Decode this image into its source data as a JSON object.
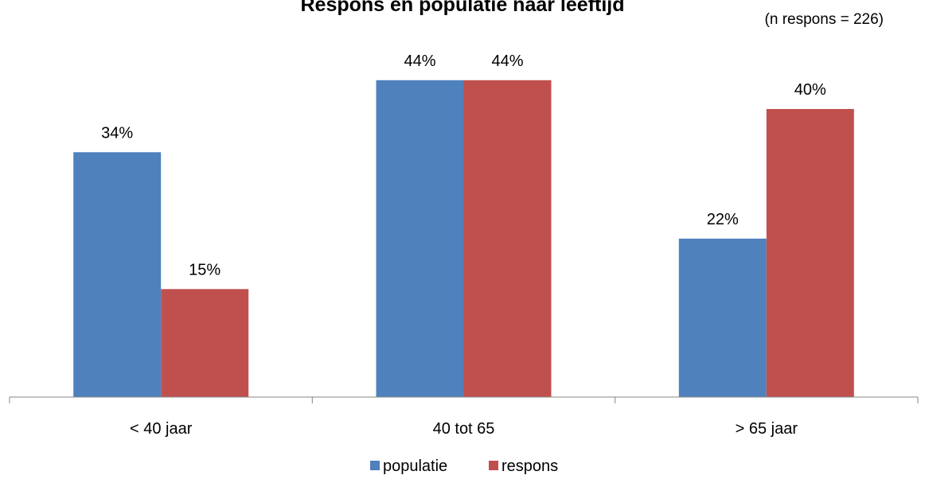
{
  "chart_data": {
    "type": "bar",
    "title": "Respons en populatie naar leeftijd",
    "subtitle": "(n respons = 226)",
    "categories": [
      "< 40 jaar",
      "40 tot 65",
      "> 65 jaar"
    ],
    "series": [
      {
        "name": "populatie",
        "values": [
          34,
          44,
          22
        ],
        "labels": [
          "34%",
          "44%",
          "22%"
        ],
        "color": "#4F81BD"
      },
      {
        "name": "respons",
        "values": [
          15,
          44,
          40
        ],
        "labels": [
          "15%",
          "44%",
          "40%"
        ],
        "color": "#C0504D"
      }
    ],
    "ylim": [
      0,
      50
    ],
    "grid": false,
    "legend": "bottom"
  }
}
